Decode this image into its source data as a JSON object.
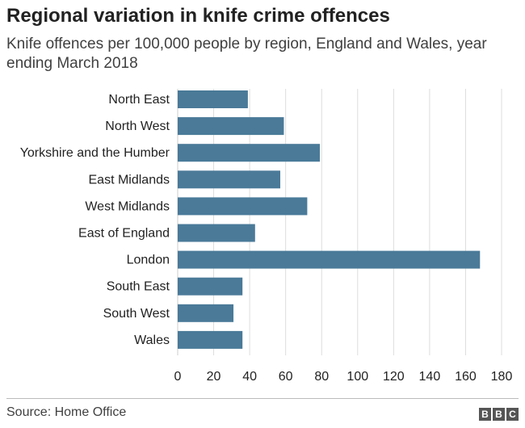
{
  "chart_data": {
    "type": "bar",
    "orientation": "horizontal",
    "title": "Regional variation in knife crime offences",
    "subtitle": "Knife offences per 100,000 people by region, England and Wales, year ending March 2018",
    "categories": [
      "North East",
      "North West",
      "Yorkshire and the Humber",
      "East Midlands",
      "West Midlands",
      "East of England",
      "London",
      "South East",
      "South West",
      "Wales"
    ],
    "values": [
      39,
      59,
      79,
      57,
      72,
      43,
      168,
      36,
      31,
      36
    ],
    "xlim": [
      0,
      180
    ],
    "xticks": [
      "0",
      "20",
      "40",
      "60",
      "80",
      "100",
      "120",
      "140",
      "160",
      "180"
    ],
    "grid": true,
    "bar_color": "#4a7a98"
  },
  "footer": {
    "source": "Source: Home Office",
    "logo_letters": [
      "B",
      "B",
      "C"
    ]
  }
}
